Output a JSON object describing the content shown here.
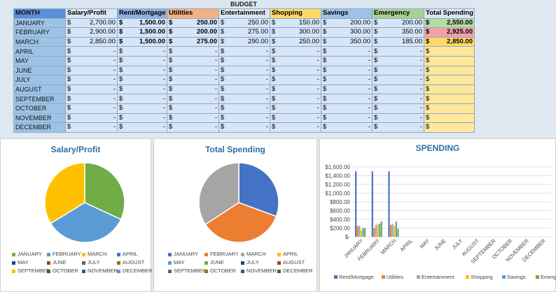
{
  "sheet": {
    "title": "BUDGET",
    "headers": [
      "MONTH",
      "Salary/Profit",
      "Rent/Mortgage",
      "Utilities",
      "Entertainment",
      "Shopping",
      "Savings",
      "Emergency",
      "Total Spending"
    ],
    "header_colors": [
      "#5b8ed6",
      "#dce6f1",
      "#8fb0e0",
      "#f4b183",
      "#dce6f1",
      "#ffd966",
      "#9dc3e6",
      "#a9d18e",
      "#dce6f1"
    ],
    "currency": "$",
    "rows": [
      {
        "month": "JANUARY",
        "cells": [
          "2,700.00",
          "1,500.00",
          "250.00",
          "250.00",
          "150.00",
          "200.00",
          "200.00",
          "2,550.00"
        ]
      },
      {
        "month": "FEBRUARY",
        "cells": [
          "2,900.00",
          "1,500.00",
          "200.00",
          "275.00",
          "300.00",
          "300.00",
          "350.00",
          "2,925.00"
        ]
      },
      {
        "month": "MARCH",
        "cells": [
          "2,850.00",
          "1,500.00",
          "275.00",
          "290.00",
          "250.00",
          "350.00",
          "185.00",
          "2,850.00"
        ]
      },
      {
        "month": "APRIL",
        "cells": [
          "-",
          "-",
          "-",
          "-",
          "-",
          "-",
          "-",
          ""
        ]
      },
      {
        "month": "MAY",
        "cells": [
          "-",
          "-",
          "-",
          "-",
          "-",
          "-",
          "-",
          ""
        ]
      },
      {
        "month": "JUNE",
        "cells": [
          "-",
          "-",
          "-",
          "-",
          "-",
          "-",
          "-",
          ""
        ]
      },
      {
        "month": "JULY",
        "cells": [
          "-",
          "-",
          "-",
          "-",
          "-",
          "-",
          "-",
          ""
        ]
      },
      {
        "month": "AUGUST",
        "cells": [
          "-",
          "-",
          "-",
          "-",
          "-",
          "-",
          "-",
          ""
        ]
      },
      {
        "month": "SEPTEMBER",
        "cells": [
          "-",
          "-",
          "-",
          "-",
          "-",
          "-",
          "-",
          ""
        ]
      },
      {
        "month": "OCTOBER",
        "cells": [
          "-",
          "-",
          "-",
          "-",
          "-",
          "-",
          "-",
          ""
        ]
      },
      {
        "month": "NOVEMBER",
        "cells": [
          "-",
          "-",
          "-",
          "-",
          "-",
          "-",
          "-",
          ""
        ]
      },
      {
        "month": "DECEMBER",
        "cells": [
          "-",
          "-",
          "-",
          "-",
          "-",
          "-",
          "-",
          ""
        ]
      }
    ]
  },
  "months": [
    "JANUARY",
    "FEBRUARY",
    "MARCH",
    "APRIL",
    "MAY",
    "JUNE",
    "JULY",
    "AUGUST",
    "SEPTEMBER",
    "OCTOBER",
    "NOVEMBER",
    "DECEMBER"
  ],
  "month_colors": [
    "#70ad47",
    "#5b9bd5",
    "#ffc000",
    "#4472c4",
    "#264478",
    "#9e480e",
    "#636363",
    "#997300",
    "#ffc000",
    "#43682b",
    "#255e91",
    "#698ed0"
  ],
  "chart_data": [
    {
      "type": "pie",
      "title": "Salary/Profit",
      "labels": [
        "JANUARY",
        "FEBRUARY",
        "MARCH",
        "APRIL",
        "MAY",
        "JUNE",
        "JULY",
        "AUGUST",
        "SEPTEMBER",
        "OCTOBER",
        "NOVEMBER",
        "DECEMBER"
      ],
      "values": [
        2700,
        2900,
        2850,
        0,
        0,
        0,
        0,
        0,
        0,
        0,
        0,
        0
      ],
      "colors": [
        "#70ad47",
        "#5b9bd5",
        "#ffc000",
        "#4472c4",
        "#264478",
        "#9e480e",
        "#636363",
        "#997300",
        "#ffc000",
        "#43682b",
        "#255e91",
        "#698ed0"
      ],
      "legend": "bottom"
    },
    {
      "type": "pie",
      "title": "Total Spending",
      "labels": [
        "JANUARY",
        "FEBRUARY",
        "MARCH",
        "APRIL",
        "MAY",
        "JUNE",
        "JULY",
        "AUGUST",
        "SEPTEMBER",
        "OCTOBER",
        "NOVEMBER",
        "DECEMBER"
      ],
      "values": [
        2550,
        2925,
        2850,
        0,
        0,
        0,
        0,
        0,
        0,
        0,
        0,
        0
      ],
      "colors": [
        "#4472c4",
        "#ed7d31",
        "#a5a5a5",
        "#ffc000",
        "#5b9bd5",
        "#70ad47",
        "#264478",
        "#9e480e",
        "#636363",
        "#997300",
        "#255e91",
        "#43682b"
      ],
      "legend": "bottom"
    },
    {
      "type": "bar",
      "title": "SPENDING",
      "categories": [
        "JANUARY",
        "FEBRUARY",
        "MARCH",
        "APRIL",
        "MAY",
        "JUNE",
        "JULY",
        "AUGUST",
        "SEPTEMBER",
        "OCTOBER",
        "NOVEMBER",
        "DECEMBER"
      ],
      "ylim": [
        0,
        1600
      ],
      "yticks": [
        "$-",
        "$200.00",
        "$400.00",
        "$600.00",
        "$800.00",
        "$1,000.00",
        "$1,200.00",
        "$1,400.00",
        "$1,600.00"
      ],
      "series": [
        {
          "name": "Rent/Mortgage",
          "color": "#4472c4",
          "values": [
            1500,
            1500,
            1500,
            0,
            0,
            0,
            0,
            0,
            0,
            0,
            0,
            0
          ]
        },
        {
          "name": "Utilities",
          "color": "#ed7d31",
          "values": [
            250,
            200,
            275,
            0,
            0,
            0,
            0,
            0,
            0,
            0,
            0,
            0
          ]
        },
        {
          "name": "Entertainment",
          "color": "#a5a5a5",
          "values": [
            250,
            275,
            290,
            0,
            0,
            0,
            0,
            0,
            0,
            0,
            0,
            0
          ]
        },
        {
          "name": "Shopping",
          "color": "#ffc000",
          "values": [
            150,
            300,
            250,
            0,
            0,
            0,
            0,
            0,
            0,
            0,
            0,
            0
          ]
        },
        {
          "name": "Savings",
          "color": "#5b9bd5",
          "values": [
            200,
            300,
            350,
            0,
            0,
            0,
            0,
            0,
            0,
            0,
            0,
            0
          ]
        },
        {
          "name": "Emergency",
          "color": "#70ad47",
          "values": [
            200,
            350,
            185,
            0,
            0,
            0,
            0,
            0,
            0,
            0,
            0,
            0
          ]
        }
      ],
      "grid": true,
      "legend": "bottom"
    }
  ]
}
